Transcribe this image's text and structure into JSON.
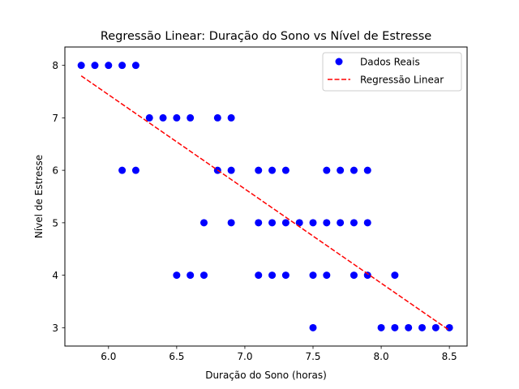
{
  "chart_data": {
    "type": "scatter",
    "title": "Regressão Linear: Duração do Sono vs Nível de Estresse",
    "xlabel": "Duração do Sono (horas)",
    "ylabel": "Nível de Estresse",
    "xlim": [
      5.68,
      8.63
    ],
    "ylim": [
      2.65,
      8.35
    ],
    "xticks": [
      6.0,
      6.5,
      7.0,
      7.5,
      8.0,
      8.5
    ],
    "xtick_labels": [
      "6.0",
      "6.5",
      "7.0",
      "7.5",
      "8.0",
      "8.5"
    ],
    "yticks": [
      3,
      4,
      5,
      6,
      7,
      8
    ],
    "ytick_labels": [
      "3",
      "4",
      "5",
      "6",
      "7",
      "8"
    ],
    "grid": false,
    "legend_position": "top-right",
    "series": [
      {
        "name": "Dados Reais",
        "kind": "scatter",
        "color": "#0000ff",
        "points": [
          [
            5.8,
            8
          ],
          [
            5.9,
            8
          ],
          [
            6.0,
            8
          ],
          [
            6.1,
            8
          ],
          [
            6.2,
            8
          ],
          [
            6.3,
            7
          ],
          [
            6.4,
            7
          ],
          [
            6.5,
            7
          ],
          [
            6.6,
            7
          ],
          [
            6.8,
            7
          ],
          [
            6.9,
            7
          ],
          [
            6.1,
            6
          ],
          [
            6.2,
            6
          ],
          [
            6.8,
            6
          ],
          [
            6.9,
            6
          ],
          [
            7.1,
            6
          ],
          [
            7.2,
            6
          ],
          [
            7.3,
            6
          ],
          [
            7.6,
            6
          ],
          [
            7.7,
            6
          ],
          [
            7.8,
            6
          ],
          [
            7.9,
            6
          ],
          [
            6.7,
            5
          ],
          [
            6.9,
            5
          ],
          [
            7.1,
            5
          ],
          [
            7.2,
            5
          ],
          [
            7.3,
            5
          ],
          [
            7.4,
            5
          ],
          [
            7.5,
            5
          ],
          [
            7.6,
            5
          ],
          [
            7.7,
            5
          ],
          [
            7.8,
            5
          ],
          [
            7.9,
            5
          ],
          [
            6.5,
            4
          ],
          [
            6.6,
            4
          ],
          [
            6.7,
            4
          ],
          [
            7.1,
            4
          ],
          [
            7.2,
            4
          ],
          [
            7.3,
            4
          ],
          [
            7.5,
            4
          ],
          [
            7.6,
            4
          ],
          [
            7.8,
            4
          ],
          [
            7.9,
            4
          ],
          [
            8.1,
            4
          ],
          [
            7.5,
            3
          ],
          [
            8.0,
            3
          ],
          [
            8.1,
            3
          ],
          [
            8.2,
            3
          ],
          [
            8.3,
            3
          ],
          [
            8.4,
            3
          ],
          [
            8.5,
            3
          ]
        ]
      },
      {
        "name": "Regressão Linear",
        "kind": "line",
        "style": "dashed",
        "color": "#ff0000",
        "points": [
          [
            5.8,
            7.8
          ],
          [
            8.5,
            2.95
          ]
        ]
      }
    ]
  }
}
